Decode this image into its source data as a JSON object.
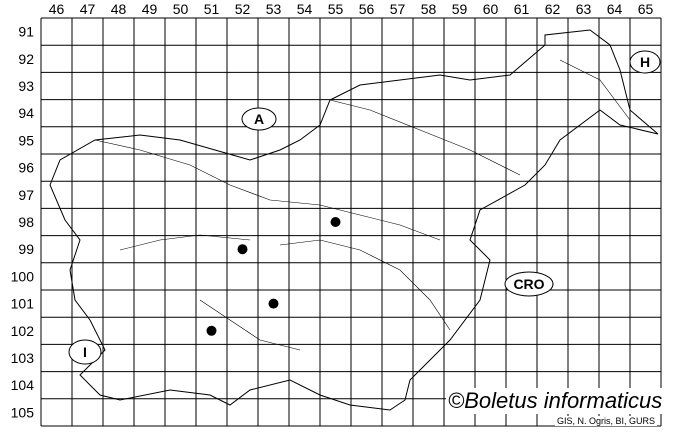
{
  "map": {
    "columns": [
      "46",
      "47",
      "48",
      "49",
      "50",
      "51",
      "52",
      "53",
      "54",
      "55",
      "56",
      "57",
      "58",
      "59",
      "60",
      "61",
      "62",
      "63",
      "64",
      "65"
    ],
    "rows": [
      "91",
      "92",
      "93",
      "94",
      "95",
      "96",
      "97",
      "98",
      "99",
      "100",
      "101",
      "102",
      "103",
      "104",
      "105"
    ],
    "country_labels": {
      "austria": "A",
      "hungary": "H",
      "croatia": "CRO",
      "italy": "I"
    },
    "records": [
      {
        "column": 52,
        "row": 99
      },
      {
        "column": 55,
        "row": 98
      },
      {
        "column": 53,
        "row": 101
      },
      {
        "column": 51,
        "row": 102
      }
    ],
    "record_color": "#000000"
  },
  "credit": "©Boletus informaticus",
  "source": "GIS, N. Ogris, BI, GURS"
}
